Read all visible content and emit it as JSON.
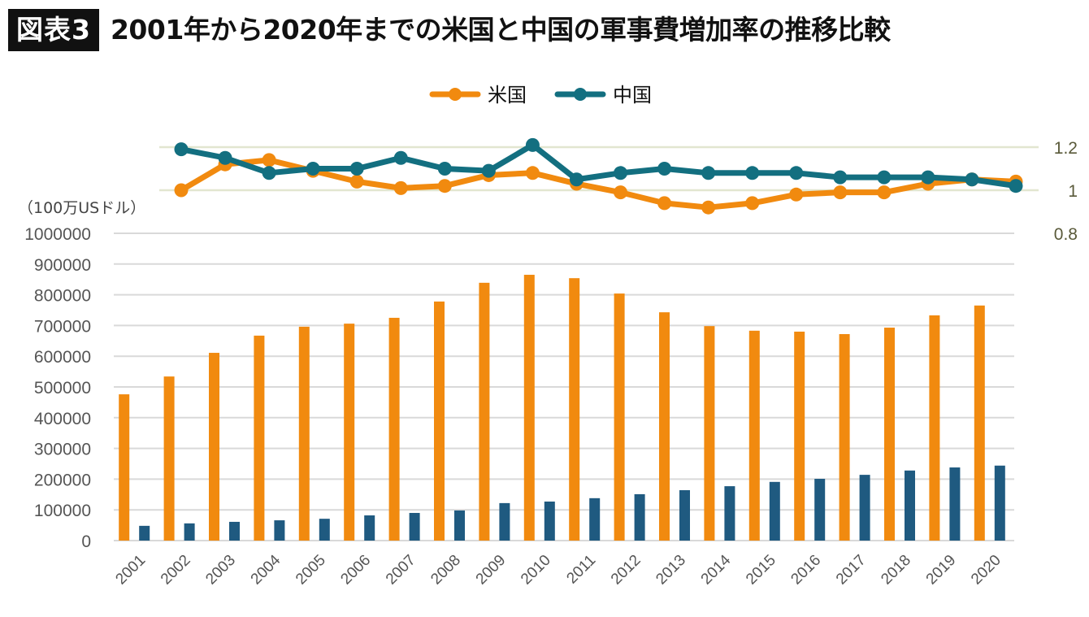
{
  "header": {
    "badge": "図表3",
    "title": "2001年から2020年までの米国と中国の軍事費増加率の推移比較"
  },
  "colors": {
    "us": "#F18A0F",
    "china_bar": "#1F5A80",
    "china_line": "#136F80",
    "grid": "#d9d9d9",
    "line_grid": "#e2e6d0"
  },
  "chart_data": {
    "type": "bar+line",
    "title": "2001年から2020年までの米国と中国の軍事費増加率の推移比較",
    "unit_label": "（100万USドル）",
    "legend": {
      "position": "top-center",
      "entries": [
        "米国",
        "中国"
      ]
    },
    "categories": [
      "2001",
      "2002",
      "2003",
      "2004",
      "2005",
      "2006",
      "2007",
      "2008",
      "2009",
      "2010",
      "2011",
      "2012",
      "2013",
      "2014",
      "2015",
      "2016",
      "2017",
      "2018",
      "2019",
      "2020"
    ],
    "bar_axis": {
      "ylim": [
        0,
        1000000
      ],
      "ticks": [
        "0",
        "100000",
        "200000",
        "300000",
        "400000",
        "500000",
        "600000",
        "700000",
        "800000",
        "900000",
        "1000000"
      ],
      "grid": true
    },
    "line_axis": {
      "ylim": [
        0.8,
        1.2
      ],
      "ticks": [
        "0.8",
        "1",
        "1.2"
      ],
      "grid": true,
      "side": "right"
    },
    "bar_series": [
      {
        "name": "米国",
        "values": [
          476000,
          534000,
          611000,
          667000,
          696000,
          706000,
          725000,
          778000,
          839000,
          865000,
          854000,
          804000,
          743000,
          698000,
          683000,
          680000,
          672000,
          693000,
          733000,
          765000
        ]
      },
      {
        "name": "中国",
        "values": [
          48000,
          56000,
          61000,
          66000,
          71000,
          82000,
          90000,
          98000,
          122000,
          127000,
          138000,
          151000,
          164000,
          177000,
          191000,
          201000,
          214000,
          228000,
          238000,
          244000
        ]
      }
    ],
    "line_series": [
      {
        "name": "米国",
        "values": [
          1.0,
          1.12,
          1.14,
          1.09,
          1.04,
          1.01,
          1.02,
          1.07,
          1.08,
          1.03,
          0.99,
          0.94,
          0.92,
          0.94,
          0.98,
          0.99,
          0.99,
          1.03,
          1.05,
          1.04
        ]
      },
      {
        "name": "中国",
        "values": [
          1.19,
          1.15,
          1.08,
          1.1,
          1.1,
          1.15,
          1.1,
          1.09,
          1.21,
          1.05,
          1.08,
          1.1,
          1.08,
          1.08,
          1.08,
          1.06,
          1.06,
          1.06,
          1.05,
          1.02
        ]
      }
    ]
  }
}
